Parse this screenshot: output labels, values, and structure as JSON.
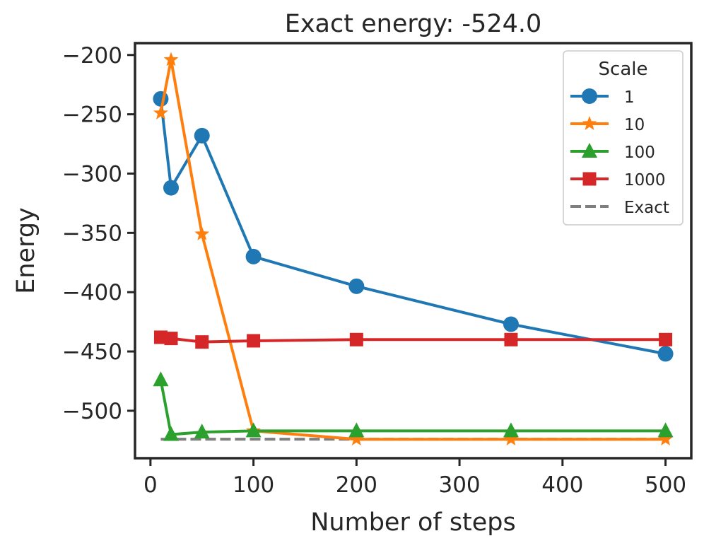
{
  "chart_data": {
    "type": "line",
    "title": "Exact energy: -524.0",
    "xlabel": "Number of steps",
    "ylabel": "Energy",
    "xlim": [
      -15,
      525
    ],
    "ylim": [
      -540,
      -190
    ],
    "xticks": [
      0,
      100,
      200,
      300,
      400,
      500
    ],
    "yticks": [
      -500,
      -450,
      -400,
      -350,
      -300,
      -250,
      -200
    ],
    "ytick_labels": [
      "−500",
      "−450",
      "−400",
      "−350",
      "−300",
      "−250",
      "−200"
    ],
    "x": [
      10,
      20,
      50,
      100,
      200,
      350,
      500
    ],
    "legend": {
      "title": "Scale",
      "placement": "top-right"
    },
    "series": [
      {
        "name": "1",
        "marker": "circle",
        "color": "#1f77b4",
        "values": [
          -237,
          -312,
          -268,
          -370,
          -395,
          -427,
          -452
        ]
      },
      {
        "name": "10",
        "marker": "star",
        "color": "#ff7f0e",
        "values": [
          -249,
          -204,
          -351,
          -517,
          -524,
          -524,
          -524
        ]
      },
      {
        "name": "100",
        "marker": "triangle",
        "color": "#2ca02c",
        "values": [
          -474,
          -520,
          -518,
          -517,
          -517,
          -517,
          -517
        ]
      },
      {
        "name": "1000",
        "marker": "square",
        "color": "#d62728",
        "values": [
          -438,
          -439,
          -442,
          -441,
          -440,
          -440,
          -440
        ]
      }
    ],
    "reference": {
      "name": "Exact",
      "value": -524.0,
      "color": "#7f7f7f",
      "style": "dashed"
    }
  }
}
